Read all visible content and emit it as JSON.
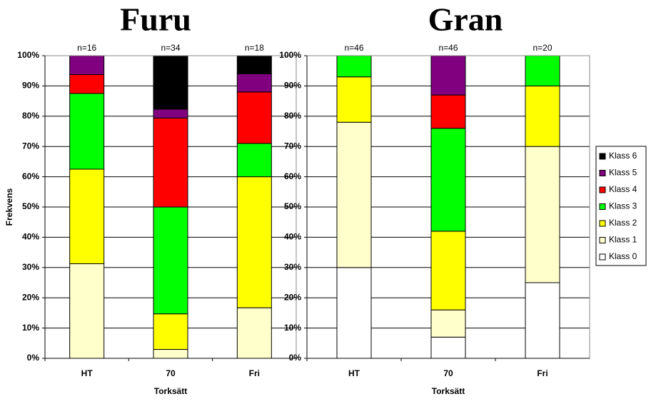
{
  "chart_data": [
    {
      "type": "stacked-bar",
      "title": "Furu",
      "y_label": "Frekvens",
      "x_label": "Torksätt",
      "categories": [
        "HT",
        "70",
        "Fri"
      ],
      "annotations": [
        "n=16",
        "n=34",
        "n=18"
      ],
      "ylim": [
        0,
        100
      ],
      "yticks": [
        {
          "value": 0,
          "label": "0%"
        },
        {
          "value": 10,
          "label": "10%"
        },
        {
          "value": 20,
          "label": "20%"
        },
        {
          "value": 30,
          "label": "30%"
        },
        {
          "value": 40,
          "label": "40%"
        },
        {
          "value": 50,
          "label": "50%"
        },
        {
          "value": 60,
          "label": "60%"
        },
        {
          "value": 70,
          "label": "70%"
        },
        {
          "value": 80,
          "label": "80%"
        },
        {
          "value": 90,
          "label": "90%"
        },
        {
          "value": 100,
          "label": "100%"
        }
      ],
      "series": [
        {
          "color": "#ffffff",
          "values": [
            0,
            0,
            0
          ]
        },
        {
          "color": "#ffffcc",
          "values": [
            31.25,
            2.94,
            16.7
          ]
        },
        {
          "color": "#ffff00",
          "values": [
            31.25,
            11.76,
            43.3
          ]
        },
        {
          "color": "#00ff00",
          "values": [
            25,
            35.29,
            11
          ]
        },
        {
          "color": "#ff0000",
          "values": [
            6.25,
            29.41,
            17
          ]
        },
        {
          "color": "#800080",
          "values": [
            6.25,
            2.94,
            6
          ]
        },
        {
          "color": "#000000",
          "values": [
            0,
            17.65,
            6
          ]
        }
      ]
    },
    {
      "type": "stacked-bar",
      "title": "Gran",
      "x_label": "Torksätt",
      "categories": [
        "HT",
        "70",
        "Fri"
      ],
      "annotations": [
        "n=46",
        "n=46",
        "n=20"
      ],
      "ylim": [
        0,
        100
      ],
      "yticks": [
        {
          "value": 0,
          "label": "0%"
        },
        {
          "value": 10,
          "label": "10%"
        },
        {
          "value": 20,
          "label": "20%"
        },
        {
          "value": 30,
          "label": "30%"
        },
        {
          "value": 40,
          "label": "40%"
        },
        {
          "value": 50,
          "label": "50%"
        },
        {
          "value": 60,
          "label": "60%"
        },
        {
          "value": 70,
          "label": "70%"
        },
        {
          "value": 80,
          "label": "80%"
        },
        {
          "value": 90,
          "label": "90%"
        },
        {
          "value": 100,
          "label": "100%"
        }
      ],
      "series": [
        {
          "name": "Klass 0",
          "color": "#ffffff",
          "values": [
            30,
            7,
            25
          ]
        },
        {
          "name": "Klass 1",
          "color": "#ffffcc",
          "values": [
            48,
            9,
            45
          ]
        },
        {
          "name": "Klass 2",
          "color": "#ffff00",
          "values": [
            15,
            26,
            20
          ]
        },
        {
          "name": "Klass 3",
          "color": "#00ff00",
          "values": [
            7,
            34,
            10
          ]
        },
        {
          "name": "Klass 4",
          "color": "#ff0000",
          "values": [
            0,
            11,
            0
          ]
        },
        {
          "name": "Klass 5",
          "color": "#800080",
          "values": [
            0,
            13,
            0
          ]
        },
        {
          "name": "Klass 6",
          "color": "#000000",
          "values": [
            0,
            0,
            0
          ]
        }
      ]
    }
  ]
}
